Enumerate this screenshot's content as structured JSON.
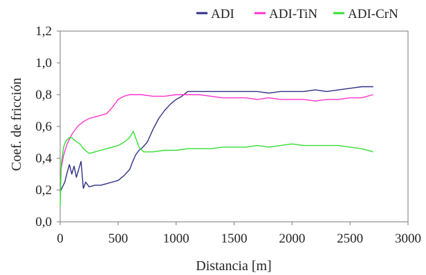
{
  "chart_data": {
    "type": "line",
    "xlabel": "Distancia [m]",
    "ylabel": "Coef. de fricción",
    "xlim": [
      0,
      3000
    ],
    "ylim": [
      0,
      1.2
    ],
    "x_ticks": [
      "0",
      "500",
      "1000",
      "1500",
      "2000",
      "2500",
      "3000"
    ],
    "y_ticks": [
      "0,0",
      "0,2",
      "0,4",
      "0,6",
      "0,8",
      "1,0",
      "1,2"
    ],
    "grid": false,
    "legend_position": "top-right",
    "series": [
      {
        "name": "ADI",
        "color": "#2e2e85",
        "x": [
          0,
          20,
          40,
          60,
          80,
          100,
          120,
          140,
          160,
          180,
          200,
          220,
          250,
          300,
          350,
          400,
          450,
          500,
          550,
          600,
          620,
          650,
          680,
          700,
          750,
          800,
          850,
          900,
          950,
          1000,
          1050,
          1100,
          1200,
          1300,
          1400,
          1500,
          1600,
          1700,
          1800,
          1900,
          2000,
          2100,
          2200,
          2300,
          2400,
          2500,
          2600,
          2700
        ],
        "y": [
          0.19,
          0.22,
          0.25,
          0.31,
          0.36,
          0.3,
          0.35,
          0.28,
          0.33,
          0.38,
          0.21,
          0.25,
          0.22,
          0.23,
          0.23,
          0.24,
          0.25,
          0.26,
          0.29,
          0.33,
          0.37,
          0.42,
          0.45,
          0.46,
          0.5,
          0.58,
          0.65,
          0.7,
          0.74,
          0.77,
          0.79,
          0.82,
          0.82,
          0.82,
          0.82,
          0.82,
          0.82,
          0.82,
          0.81,
          0.82,
          0.82,
          0.82,
          0.83,
          0.82,
          0.83,
          0.84,
          0.85,
          0.85
        ]
      },
      {
        "name": "ADI-TiN",
        "color": "#ff33cc",
        "x": [
          0,
          30,
          60,
          100,
          150,
          200,
          250,
          300,
          350,
          400,
          450,
          500,
          550,
          600,
          700,
          800,
          900,
          1000,
          1100,
          1200,
          1300,
          1400,
          1500,
          1600,
          1700,
          1800,
          1900,
          2000,
          2100,
          2200,
          2300,
          2400,
          2500,
          2600,
          2700
        ],
        "y": [
          0.3,
          0.42,
          0.49,
          0.55,
          0.6,
          0.63,
          0.65,
          0.66,
          0.67,
          0.68,
          0.72,
          0.77,
          0.79,
          0.8,
          0.8,
          0.79,
          0.79,
          0.8,
          0.8,
          0.8,
          0.79,
          0.78,
          0.78,
          0.78,
          0.77,
          0.78,
          0.77,
          0.77,
          0.77,
          0.76,
          0.77,
          0.77,
          0.78,
          0.78,
          0.8
        ]
      },
      {
        "name": "ADI-CrN",
        "color": "#33dd33",
        "x": [
          0,
          10,
          30,
          50,
          80,
          100,
          130,
          170,
          200,
          250,
          300,
          350,
          400,
          450,
          500,
          550,
          600,
          630,
          650,
          680,
          720,
          800,
          900,
          1000,
          1100,
          1200,
          1300,
          1400,
          1500,
          1600,
          1700,
          1800,
          1900,
          2000,
          2100,
          2200,
          2300,
          2400,
          2500,
          2600,
          2700
        ],
        "y": [
          0.1,
          0.37,
          0.47,
          0.51,
          0.53,
          0.53,
          0.51,
          0.49,
          0.46,
          0.43,
          0.44,
          0.45,
          0.46,
          0.47,
          0.48,
          0.5,
          0.53,
          0.57,
          0.53,
          0.47,
          0.44,
          0.44,
          0.45,
          0.45,
          0.46,
          0.46,
          0.46,
          0.47,
          0.47,
          0.47,
          0.48,
          0.47,
          0.48,
          0.49,
          0.48,
          0.48,
          0.48,
          0.48,
          0.47,
          0.46,
          0.44
        ]
      }
    ]
  }
}
